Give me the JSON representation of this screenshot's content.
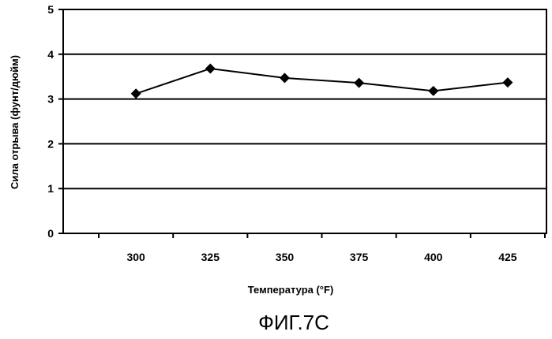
{
  "chart_data": {
    "type": "line",
    "title": "",
    "xlabel": "Температура (°F)",
    "ylabel": "Сила отрыва (фунт/дюйм)",
    "categories": [
      "300",
      "325",
      "350",
      "375",
      "400",
      "425"
    ],
    "series": [
      {
        "values": [
          3.12,
          3.68,
          3.47,
          3.36,
          3.18,
          3.37
        ],
        "color": "#000000",
        "marker": "diamond"
      }
    ],
    "ylim": [
      0,
      5
    ],
    "yticks": [
      "0",
      "1",
      "2",
      "3",
      "4",
      "5"
    ],
    "grid": true,
    "legend": "none"
  },
  "caption": "ФИГ.7С"
}
